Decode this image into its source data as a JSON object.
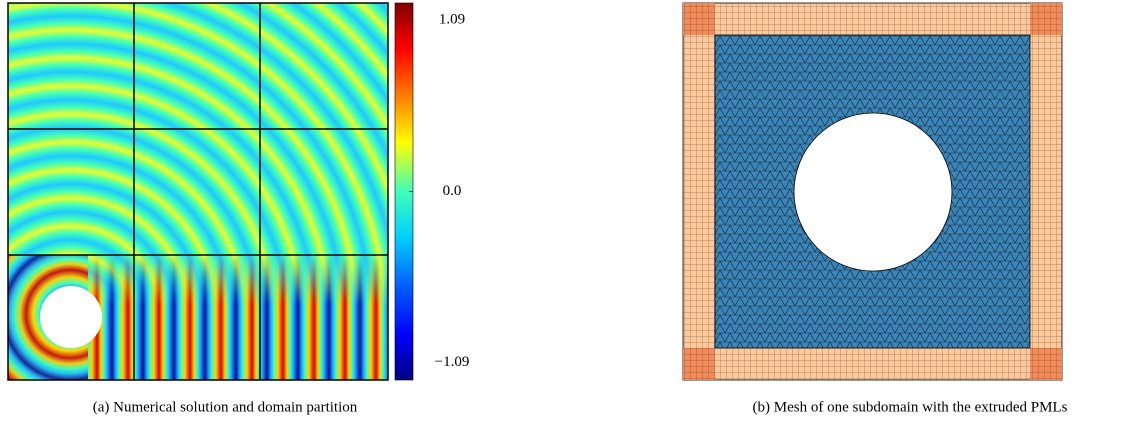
{
  "panel_a": {
    "colorbar": {
      "lim": [
        -1.2,
        1.2
      ],
      "ticks": [
        {
          "value": 1.09,
          "label": "1.09"
        },
        {
          "value": 0,
          "label": "0.0"
        },
        {
          "value": -1.09,
          "label": "−1.09"
        }
      ]
    },
    "caption": "(a) Numerical solution and domain partition"
  },
  "panel_b": {
    "caption": "(b) Mesh of one subdomain with the extruded PMLs"
  }
}
